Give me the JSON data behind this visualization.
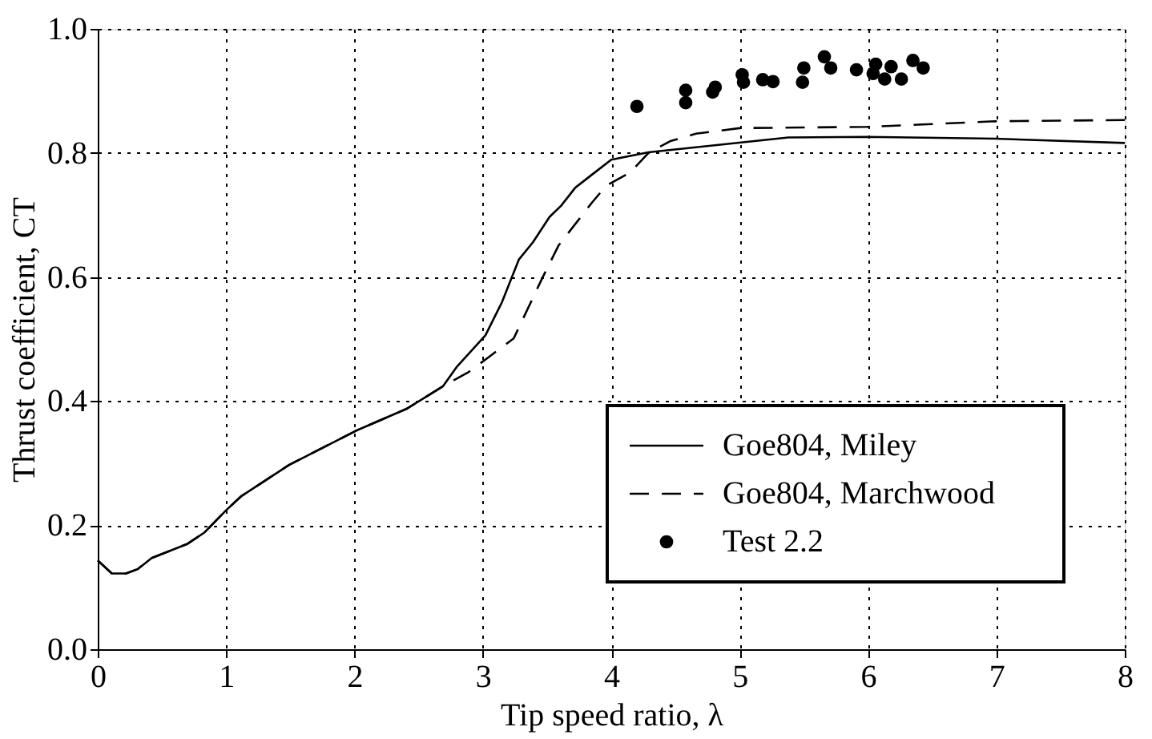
{
  "chart_data": {
    "type": "line",
    "xlabel": "Tip speed ratio, λ",
    "ylabel": "Thrust coefficient, CT",
    "xlim": [
      0,
      8
    ],
    "xticks": [
      0,
      1,
      2,
      3,
      4,
      5,
      6,
      7,
      8
    ],
    "ylim": [
      0,
      1
    ],
    "yticks": [
      {
        "value": 0,
        "label": "0.0"
      },
      {
        "value": 0.2,
        "label": "0.2"
      },
      {
        "value": 0.4,
        "label": "0.4"
      },
      {
        "value": 0.6,
        "label": "0.6"
      },
      {
        "value": 0.8,
        "label": "0.8"
      },
      {
        "value": 1,
        "label": "1.0"
      }
    ],
    "grid": true,
    "legend": "bottom right",
    "series": [
      {
        "name": "Goe804, Miley",
        "color": "#000000",
        "line_style": "solid",
        "marker": "none",
        "x": [
          0,
          0.11,
          0.22,
          0.31,
          0.42,
          0.7,
          0.83,
          1.0,
          1.12,
          1.49,
          2.01,
          2.41,
          2.69,
          2.8,
          3.02,
          3.15,
          3.28,
          3.39,
          3.52,
          3.61,
          3.72,
          3.85,
          4.0,
          4.29,
          5.38,
          5.99,
          6.99,
          8.0
        ],
        "values": [
          0.143,
          0.122,
          0.122,
          0.129,
          0.147,
          0.17,
          0.188,
          0.224,
          0.247,
          0.297,
          0.352,
          0.388,
          0.424,
          0.456,
          0.506,
          0.56,
          0.628,
          0.656,
          0.697,
          0.715,
          0.744,
          0.765,
          0.789,
          0.801,
          0.825,
          0.826,
          0.823,
          0.816
        ]
      },
      {
        "name": "Goe804, Marchwood",
        "color": "#000000",
        "line_style": "dashed",
        "marker": "none",
        "x": [
          0,
          0.11,
          0.22,
          0.31,
          0.42,
          0.7,
          0.83,
          1.0,
          1.12,
          1.49,
          2.01,
          2.41,
          2.69,
          2.89,
          3.04,
          3.24,
          3.46,
          3.59,
          3.85,
          3.96,
          4.15,
          4.29,
          4.46,
          4.66,
          5.0,
          5.99,
          6.99,
          8.0
        ],
        "values": [
          0.143,
          0.122,
          0.122,
          0.129,
          0.147,
          0.17,
          0.188,
          0.224,
          0.247,
          0.297,
          0.352,
          0.388,
          0.424,
          0.447,
          0.47,
          0.501,
          0.597,
          0.651,
          0.72,
          0.747,
          0.769,
          0.8,
          0.819,
          0.831,
          0.84,
          0.842,
          0.851,
          0.853
        ]
      },
      {
        "name": "Test 2.2",
        "type": "scatter",
        "color": "#000000",
        "marker": "circle",
        "x": [
          4.2,
          4.58,
          4.58,
          4.79,
          4.81,
          5.02,
          5.03,
          5.18,
          5.26,
          5.5,
          5.49,
          5.66,
          5.71,
          5.91,
          6.06,
          6.04,
          6.13,
          6.18,
          6.26,
          6.35,
          6.43
        ],
        "values": [
          0.875,
          0.901,
          0.881,
          0.898,
          0.906,
          0.926,
          0.914,
          0.918,
          0.915,
          0.937,
          0.914,
          0.955,
          0.937,
          0.934,
          0.943,
          0.928,
          0.919,
          0.939,
          0.919,
          0.949,
          0.937
        ]
      }
    ]
  }
}
